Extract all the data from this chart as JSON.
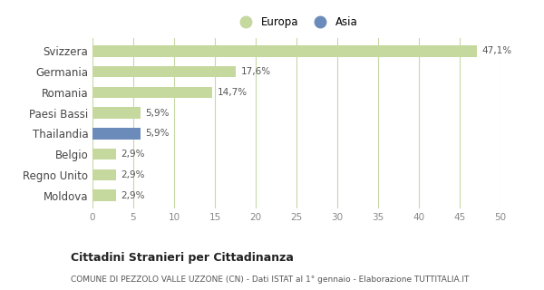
{
  "categories": [
    "Svizzera",
    "Germania",
    "Romania",
    "Paesi Bassi",
    "Thailandia",
    "Belgio",
    "Regno Unito",
    "Moldova"
  ],
  "values": [
    47.1,
    17.6,
    14.7,
    5.9,
    5.9,
    2.9,
    2.9,
    2.9
  ],
  "labels": [
    "47,1%",
    "17,6%",
    "14,7%",
    "5,9%",
    "5,9%",
    "2,9%",
    "2,9%",
    "2,9%"
  ],
  "colors": [
    "#c5d89d",
    "#c5d89d",
    "#c5d89d",
    "#c5d89d",
    "#6b8cba",
    "#c5d89d",
    "#c5d89d",
    "#c5d89d"
  ],
  "europa_color": "#c5d89d",
  "asia_color": "#6b8cba",
  "xlim": [
    0,
    50
  ],
  "xticks": [
    0,
    5,
    10,
    15,
    20,
    25,
    30,
    35,
    40,
    45,
    50
  ],
  "title": "Cittadini Stranieri per Cittadinanza",
  "subtitle": "COMUNE DI PEZZOLO VALLE UZZONE (CN) - Dati ISTAT al 1° gennaio - Elaborazione TUTTITALIA.IT",
  "background_color": "#ffffff",
  "grid_color": "#c8d8a8",
  "legend_europa": "Europa",
  "legend_asia": "Asia"
}
